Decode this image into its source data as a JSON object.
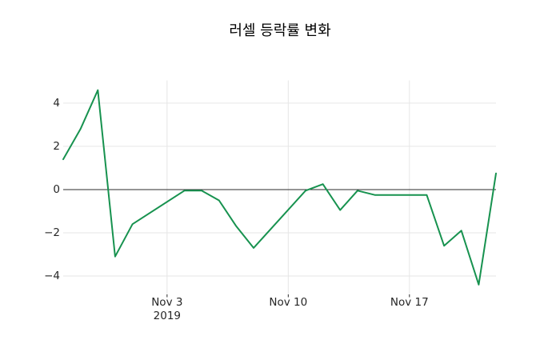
{
  "window": {
    "background": "#ffffff"
  },
  "chart_data": {
    "type": "line",
    "title": "러셀 등락률 변화",
    "xlabel": "",
    "ylabel": "",
    "legend_position": "none",
    "grid": true,
    "zero_line": true,
    "background": "#ffffff",
    "grid_color": "#e6e6e6",
    "zero_line_color": "#2b2b2b",
    "tick_label_color": "#262626",
    "xlim_days": [
      0,
      25
    ],
    "ylim": [
      -4.85,
      5.05
    ],
    "series": [
      {
        "name": "러셀 등락률",
        "color": "#17924f",
        "points": [
          {
            "date": "2019-10-28",
            "day": 0,
            "value": 1.4
          },
          {
            "date": "2019-10-29",
            "day": 1,
            "value": 2.8
          },
          {
            "date": "2019-10-30",
            "day": 2,
            "value": 4.6
          },
          {
            "date": "2019-10-31",
            "day": 3,
            "value": -3.1
          },
          {
            "date": "2019-11-01",
            "day": 4,
            "value": -1.6
          },
          {
            "date": "2019-11-04",
            "day": 7,
            "value": -0.05
          },
          {
            "date": "2019-11-05",
            "day": 8,
            "value": -0.05
          },
          {
            "date": "2019-11-06",
            "day": 9,
            "value": -0.5
          },
          {
            "date": "2019-11-07",
            "day": 10,
            "value": -1.7
          },
          {
            "date": "2019-11-08",
            "day": 11,
            "value": -2.7
          },
          {
            "date": "2019-11-11",
            "day": 14,
            "value": -0.05
          },
          {
            "date": "2019-11-12",
            "day": 15,
            "value": 0.25
          },
          {
            "date": "2019-11-13",
            "day": 16,
            "value": -0.95
          },
          {
            "date": "2019-11-14",
            "day": 17,
            "value": -0.05
          },
          {
            "date": "2019-11-15",
            "day": 18,
            "value": -0.25
          },
          {
            "date": "2019-11-18",
            "day": 21,
            "value": -0.25
          },
          {
            "date": "2019-11-19",
            "day": 22,
            "value": -2.6
          },
          {
            "date": "2019-11-20",
            "day": 23,
            "value": -1.9
          },
          {
            "date": "2019-11-21",
            "day": 24,
            "value": -4.4
          },
          {
            "date": "2019-11-22",
            "day": 25,
            "value": 0.75
          }
        ]
      }
    ],
    "x_ticks": [
      {
        "label": "Nov 3",
        "day": 6,
        "sublabel": "2019"
      },
      {
        "label": "Nov 10",
        "day": 13,
        "sublabel": ""
      },
      {
        "label": "Nov 17",
        "day": 20,
        "sublabel": ""
      }
    ],
    "y_ticks": [
      {
        "label": "−4",
        "value": -4
      },
      {
        "label": "−2",
        "value": -2
      },
      {
        "label": "0",
        "value": 0
      },
      {
        "label": "2",
        "value": 2
      },
      {
        "label": "4",
        "value": 4
      }
    ]
  }
}
